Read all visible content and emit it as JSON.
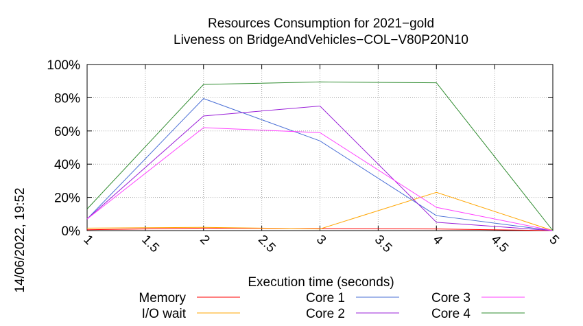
{
  "chart_data": {
    "type": "line",
    "title": "Resources Consumption for 2021−gold",
    "subtitle": "Liveness on BridgeAndVehicles−COL−V80P20N10",
    "xlabel": "Execution time (seconds)",
    "ylabel": "",
    "timestamp": "14/06/2022, 19:52",
    "xlim": [
      1,
      5
    ],
    "ylim": [
      0,
      100
    ],
    "x_ticks": [
      1,
      1.5,
      2,
      2.5,
      3,
      3.5,
      4,
      4.5,
      5
    ],
    "x_tick_labels": [
      "1",
      "1.5",
      "2",
      "2.5",
      "3",
      "3.5",
      "4",
      "4.5",
      "5"
    ],
    "y_ticks": [
      0,
      20,
      40,
      60,
      80,
      100
    ],
    "y_tick_labels": [
      "0%",
      "20%",
      "40%",
      "60%",
      "80%",
      "100%"
    ],
    "grid": true,
    "legend_position": "bottom",
    "series": [
      {
        "name": "Memory",
        "color": "#ff0000",
        "x": [
          1,
          2,
          3,
          4,
          5
        ],
        "y": [
          0.5,
          1.5,
          1.2,
          1.0,
          0
        ]
      },
      {
        "name": "I/O wait",
        "color": "#ffa500",
        "x": [
          1,
          2,
          3,
          4,
          5
        ],
        "y": [
          1.5,
          2.0,
          1.0,
          23.0,
          0
        ]
      },
      {
        "name": "Core 1",
        "color": "#4a6fd6",
        "x": [
          1,
          2,
          3,
          4,
          5
        ],
        "y": [
          7,
          79.5,
          54,
          9,
          0
        ]
      },
      {
        "name": "Core 2",
        "color": "#9a20d8",
        "x": [
          1,
          2,
          3,
          4,
          5
        ],
        "y": [
          7,
          69,
          75,
          5,
          0
        ]
      },
      {
        "name": "Core 3",
        "color": "#ff40ff",
        "x": [
          1,
          2,
          3,
          4,
          5
        ],
        "y": [
          7,
          62,
          59,
          14,
          0
        ]
      },
      {
        "name": "Core 4",
        "color": "#2e8b2e",
        "x": [
          1,
          2,
          3,
          4,
          5
        ],
        "y": [
          13,
          88,
          89.5,
          89,
          0
        ]
      }
    ]
  }
}
